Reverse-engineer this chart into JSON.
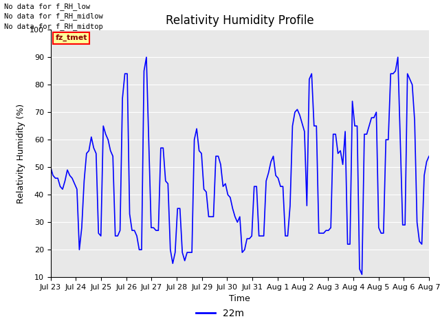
{
  "title": "Relativity Humidity Profile",
  "xlabel": "Time",
  "ylabel": "Relativity Humidity (%)",
  "ylim": [
    10,
    100
  ],
  "yticks": [
    10,
    20,
    30,
    40,
    50,
    60,
    70,
    80,
    90,
    100
  ],
  "legend_label": "22m",
  "line_color": "blue",
  "background_color": "#e8e8e8",
  "annotations": [
    "No data for f_RH_low",
    "No data for f_RH_midlow",
    "No data for f_RH_midtop"
  ],
  "legend_box_color": "#ffff99",
  "legend_box_border": "red",
  "legend_text_color": "darkred",
  "x_tick_labels": [
    "Jul 23",
    "Jul 24",
    "Jul 25",
    "Jul 26",
    "Jul 27",
    "Jul 28",
    "Jul 29",
    "Jul 30",
    "Jul 31",
    "Aug 1",
    "Aug 2",
    "Aug 3",
    "Aug 4",
    "Aug 5",
    "Aug 6",
    "Aug 7"
  ],
  "rh_data": [
    50,
    47,
    46,
    46,
    43,
    42,
    45,
    49,
    47,
    46,
    44,
    42,
    20,
    28,
    45,
    55,
    56,
    61,
    57,
    55,
    26,
    25,
    65,
    62,
    60,
    56,
    54,
    25,
    25,
    27,
    75,
    84,
    84,
    33,
    27,
    27,
    25,
    20,
    20,
    85,
    90,
    59,
    28,
    28,
    27,
    27,
    57,
    57,
    45,
    44,
    20,
    15,
    19,
    35,
    35,
    19,
    16,
    19,
    19,
    19,
    60,
    64,
    56,
    55,
    42,
    41,
    32,
    32,
    32,
    54,
    54,
    51,
    43,
    44,
    40,
    39,
    35,
    32,
    30,
    32,
    19,
    20,
    24,
    24,
    25,
    43,
    43,
    25,
    25,
    25,
    45,
    48,
    52,
    54,
    47,
    46,
    43,
    43,
    25,
    25,
    36,
    65,
    70,
    71,
    69,
    66,
    63,
    36,
    82,
    84,
    65,
    65,
    26,
    26,
    26,
    27,
    27,
    28,
    62,
    62,
    55,
    56,
    51,
    63,
    22,
    22,
    74,
    65,
    65,
    13,
    11,
    62,
    62,
    65,
    68,
    68,
    70,
    28,
    26,
    26,
    60,
    60,
    84,
    84,
    85,
    90,
    60,
    29,
    29,
    84,
    82,
    80,
    67,
    30,
    23,
    22,
    47,
    52,
    54
  ]
}
